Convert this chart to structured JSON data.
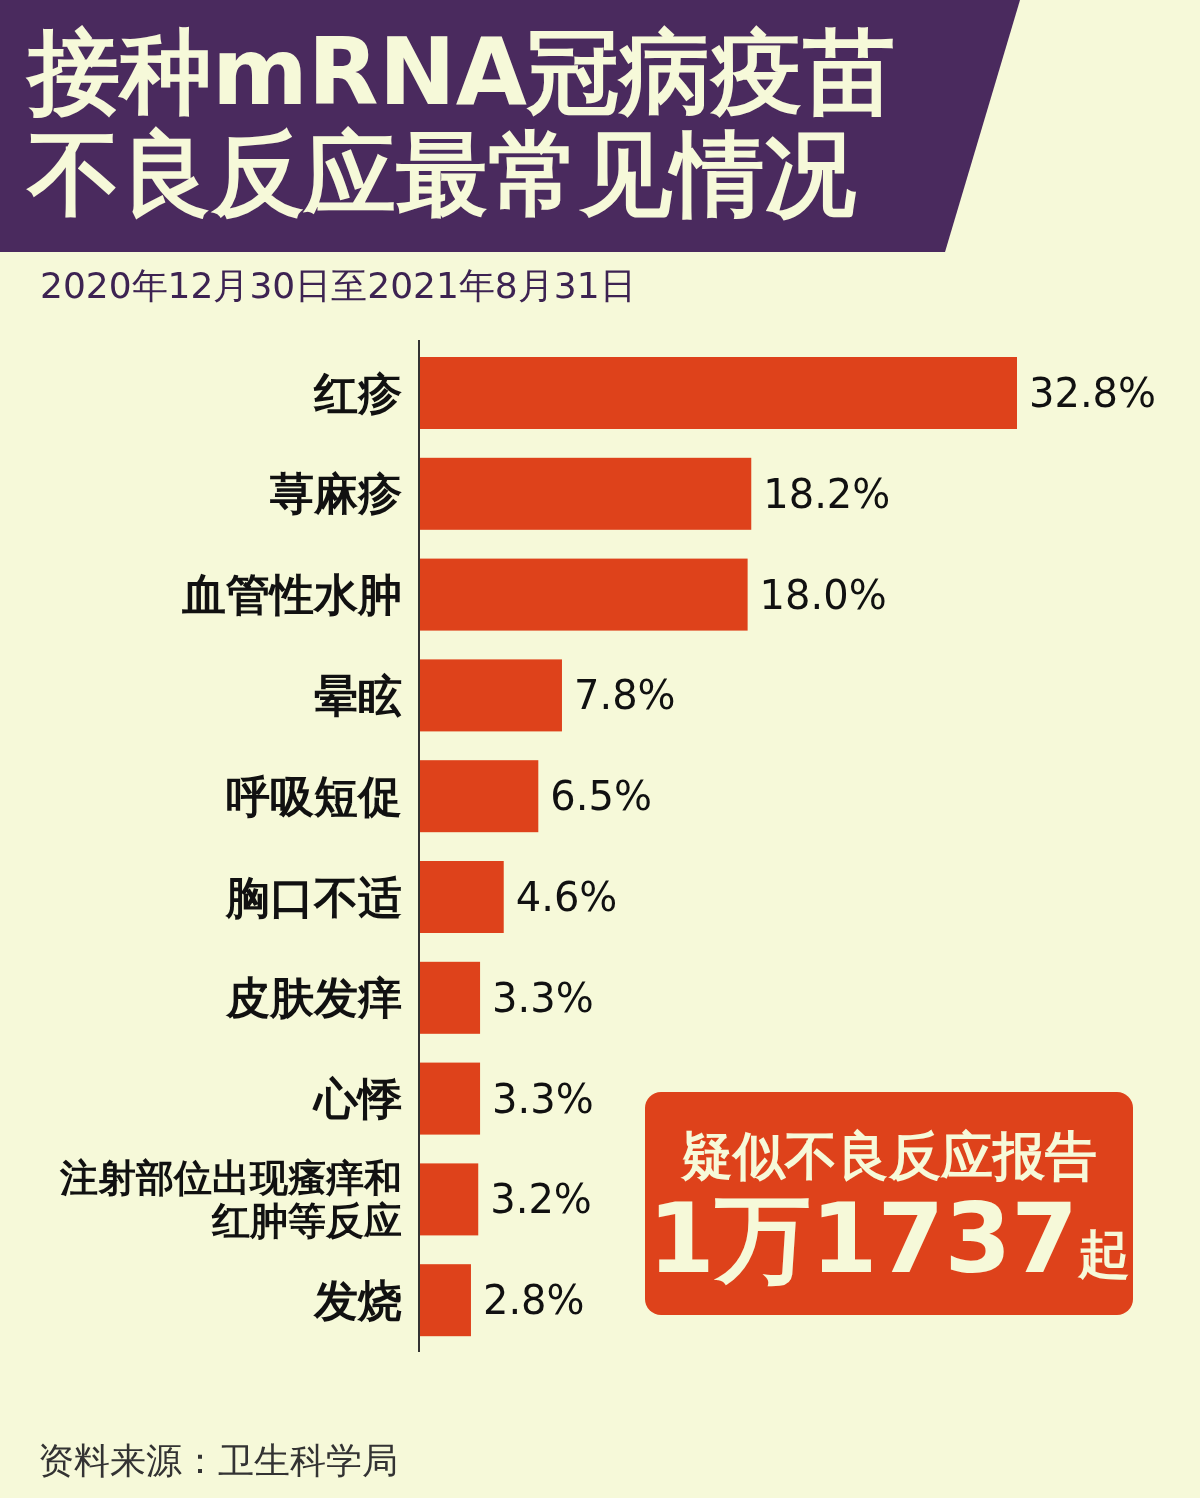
{
  "chart_data": {
    "type": "bar",
    "orientation": "horizontal",
    "title": "接种mRNA冠病疫苗不良反应最常见情况",
    "subtitle": "2020年12月30日至2021年8月31日",
    "categories": [
      "红疹",
      "荨麻疹",
      "血管性水肿",
      "晕眩",
      "呼吸短促",
      "胸口不适",
      "皮肤发痒",
      "心悸",
      "注射部位出现瘙痒和红肿等反应",
      "发烧"
    ],
    "values": [
      32.8,
      18.2,
      18.0,
      7.8,
      6.5,
      4.6,
      3.3,
      3.3,
      3.2,
      2.8
    ],
    "value_labels": [
      "32.8%",
      "18.2%",
      "18.0%",
      "7.8%",
      "6.5%",
      "4.6%",
      "3.3%",
      "3.3%",
      "3.2%",
      "2.8%"
    ],
    "color": "#de421b",
    "annotations": [
      "疑似不良反应报告",
      "1万1737起",
      "资料来源：卫生科学局"
    ]
  }
}
